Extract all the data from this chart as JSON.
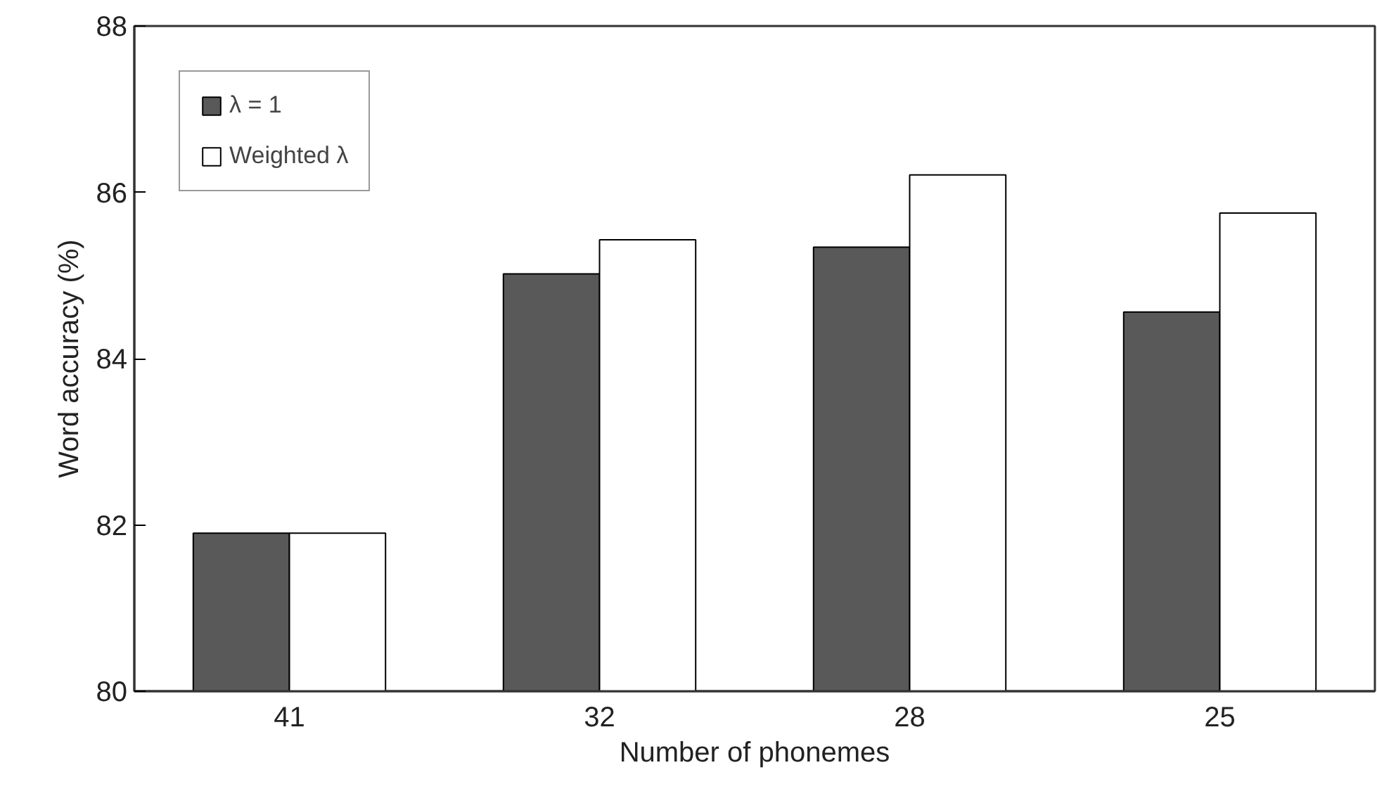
{
  "chart_data": {
    "type": "bar",
    "xlabel": "Number of phonemes",
    "ylabel": "Word accuracy (%)",
    "categories": [
      "41",
      "32",
      "28",
      "25"
    ],
    "series": [
      {
        "name": "λ = 1",
        "color": "#595959",
        "values": [
          81.9,
          85.02,
          85.34,
          84.56
        ]
      },
      {
        "name": "Weighted λ",
        "color": "#ffffff",
        "values": [
          81.9,
          85.43,
          86.21,
          85.75
        ]
      }
    ],
    "ylim": [
      80,
      88
    ],
    "yticks": [
      80,
      82,
      84,
      86,
      88
    ],
    "grid": false,
    "legend": "top left"
  }
}
